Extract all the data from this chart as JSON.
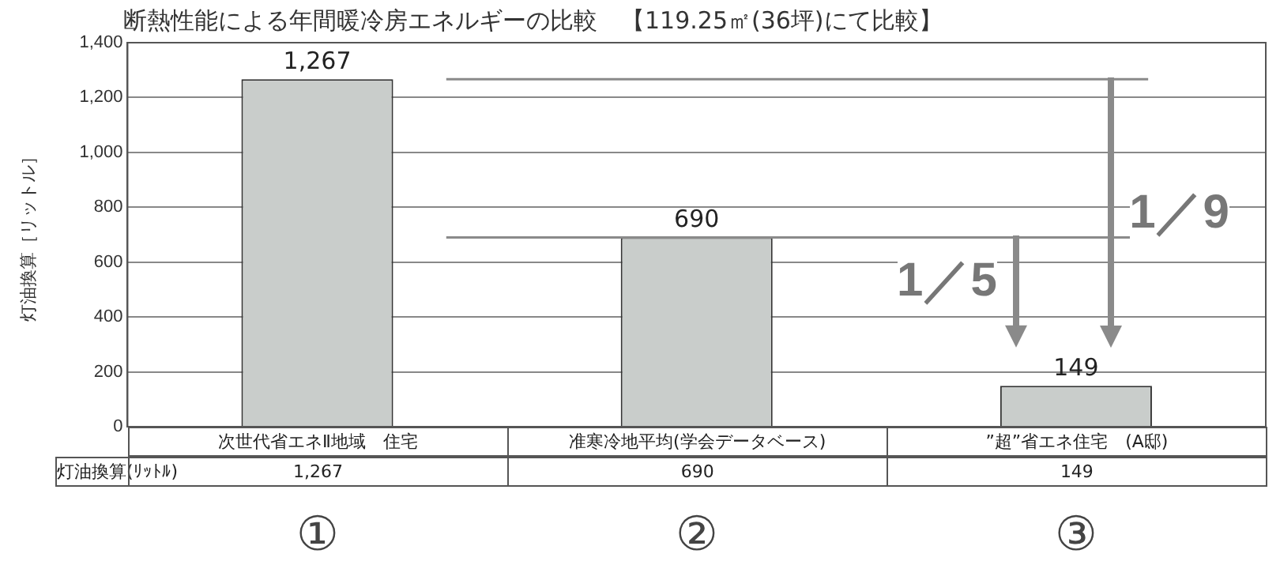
{
  "chart_data": {
    "type": "bar",
    "title": "断熱性能による年間暖冷房エネルギーの比較　【119.25㎡(36坪)にて比較】",
    "ylabel": "灯油換算［リットル］",
    "categories": [
      "次世代省エネⅡ地域　住宅",
      "准寒冷地平均(学会データベース)",
      "”超”省エネ住宅　(A邸)"
    ],
    "values": [
      1267,
      690,
      149
    ],
    "value_labels": [
      "1,267",
      "690",
      "149"
    ],
    "color": "#c9cdcb",
    "ylim": [
      0,
      1400
    ],
    "yticks": [
      {
        "value": 0,
        "label": "0"
      },
      {
        "value": 200,
        "label": "200"
      },
      {
        "value": 400,
        "label": "400"
      },
      {
        "value": 600,
        "label": "600"
      },
      {
        "value": 800,
        "label": "800"
      },
      {
        "value": 1000,
        "label": "1,000"
      },
      {
        "value": 1200,
        "label": "1,200"
      },
      {
        "value": 1400,
        "label": "1,400"
      }
    ],
    "grid": "y",
    "ref_lines": [
      {
        "axis": "y",
        "value": 1267,
        "label": "1／9",
        "color": "#8a8a8a"
      },
      {
        "axis": "y",
        "value": 690,
        "label": "1／5",
        "color": "#8a8a8a"
      }
    ],
    "annotations": [
      "灯油換算(ﾘｯﾄﾙ)",
      "①",
      "②",
      "③"
    ]
  }
}
